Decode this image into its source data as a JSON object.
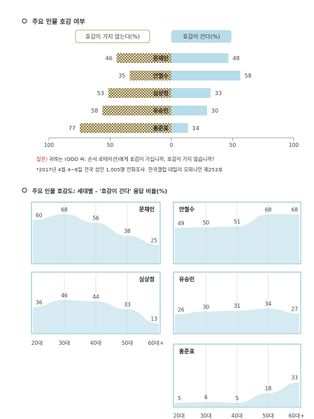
{
  "section1": {
    "title": "주요 인물 호감 여부",
    "legend_negative": "호감이 가지 않는다(%)",
    "legend_positive": "호감이 간다(%)",
    "question_label": "질문)",
    "question_text": "귀하는 (OOO 씨: 순서 로테이션)에게 호감이 가십니까, 호감이 가지 않습니까?",
    "source": "*2017년 4월 4~6일 전국 성인 1,005명 전화조사. 한국갤럽 데일리 오피니언 제253호"
  },
  "section2": {
    "title": "주요 인물 호감도: 세대별 - '호감이 간다' 응답 비율(%)"
  },
  "colors": {
    "negative_fill": "#cdbf94",
    "negative_dot": "#8a7a4c",
    "positive_fill": "#b6dde9",
    "panel_border": "#93c6d8",
    "area_fill": "#d6eaf1",
    "question_red": "#c0392b"
  },
  "chart_data": [
    {
      "type": "bar",
      "categories": [
        "문재인",
        "안철수",
        "심상정",
        "유승민",
        "홍준표"
      ],
      "series": [
        {
          "name": "호감이 가지 않는다(%)",
          "values": [
            46,
            35,
            53,
            58,
            77
          ]
        },
        {
          "name": "호감이 간다(%)",
          "values": [
            48,
            58,
            33,
            30,
            14
          ]
        }
      ],
      "axis_ticks": [
        "100",
        "50",
        "0",
        "50",
        "100"
      ],
      "xlim": [
        -100,
        100
      ]
    },
    {
      "type": "area",
      "panels": [
        {
          "name": "문재인",
          "values": [
            60,
            68,
            56,
            38,
            25
          ]
        },
        {
          "name": "안철수",
          "values": [
            49,
            50,
            51,
            68,
            68
          ]
        },
        {
          "name": "심상정",
          "values": [
            36,
            46,
            44,
            33,
            13
          ]
        },
        {
          "name": "유승민",
          "values": [
            26,
            30,
            31,
            34,
            27
          ]
        },
        {
          "name": "홍준표",
          "values": [
            5,
            6,
            5,
            18,
            33
          ]
        }
      ],
      "categories": [
        "20대",
        "30대",
        "40대",
        "50대",
        "60대+"
      ],
      "ylim": [
        0,
        80
      ]
    }
  ]
}
